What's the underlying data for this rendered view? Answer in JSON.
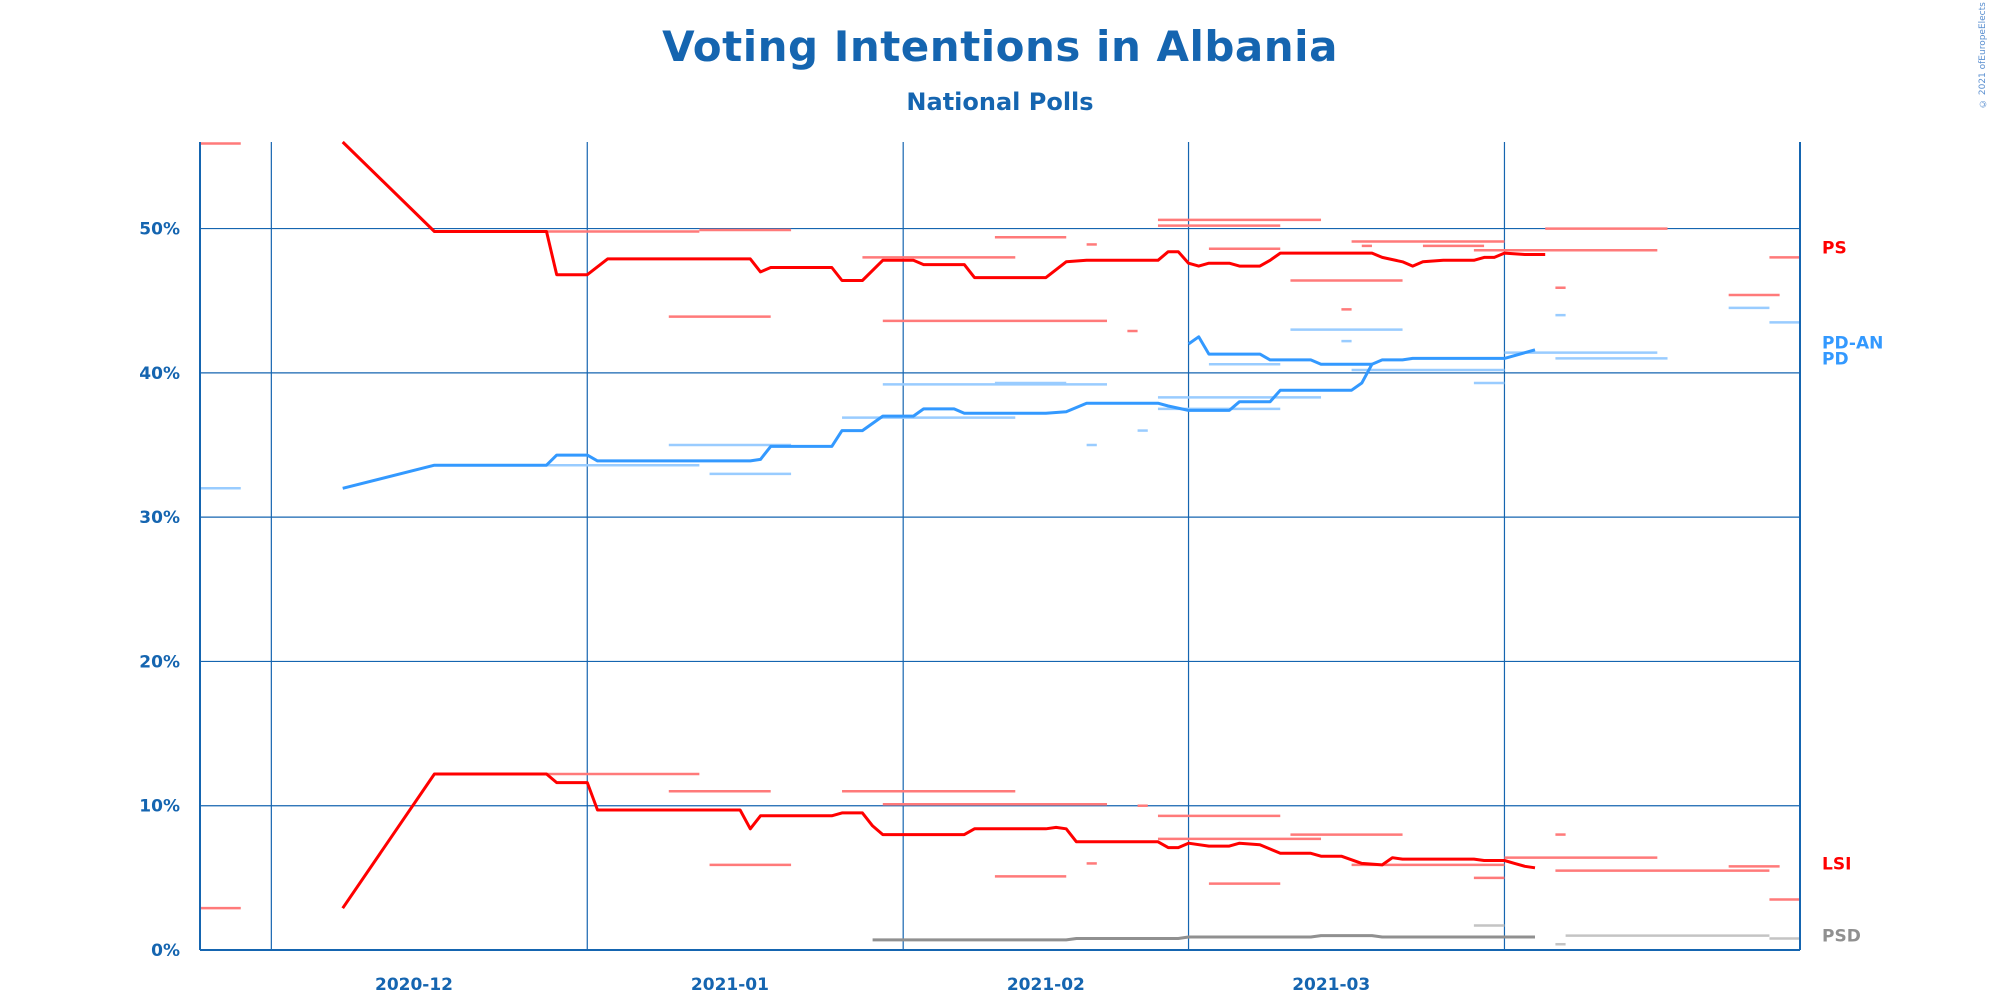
{
  "title": "Voting Intentions in Albania",
  "subtitle": "National Polls",
  "copyright": "© 2021 ofEuropeElects",
  "colors": {
    "axis": "#1565b0",
    "PS": "#ff0000",
    "PD": "#3399ff",
    "LSI": "#ff0000",
    "PSD": "#909090"
  },
  "chart_data": {
    "type": "line",
    "title": "Voting Intentions in Albania",
    "subtitle": "National Polls",
    "xlim": [
      "2020-11-24",
      "2021-04-30"
    ],
    "ylim": [
      0,
      56
    ],
    "y_ticks": [
      0,
      10,
      20,
      30,
      40,
      50
    ],
    "y_tick_labels": [
      "0%",
      "10%",
      "20%",
      "30%",
      "40%",
      "50%"
    ],
    "x_ticks": [
      "2020-12-01",
      "2021-01-01",
      "2021-02-01",
      "2021-03-01",
      "2021-04-01"
    ],
    "x_tick_labels": [
      "2020-12",
      "2021-01",
      "2021-02",
      "2021-03"
    ],
    "x_tick_label_positions": [
      "2020-12-15",
      "2021-01-15",
      "2021-02-15",
      "2021-03-15"
    ],
    "grid": true,
    "legend": "right end labels",
    "series": [
      {
        "name": "PS",
        "color": "#ff0000",
        "label_value": 48.7,
        "points": [
          [
            "2020-12-08",
            56.0
          ],
          [
            "2020-12-17",
            49.8
          ],
          [
            "2020-12-28",
            49.8
          ],
          [
            "2020-12-29",
            46.8
          ],
          [
            "2021-01-01",
            46.8
          ],
          [
            "2021-01-03",
            47.9
          ],
          [
            "2021-01-17",
            47.9
          ],
          [
            "2021-01-18",
            47.0
          ],
          [
            "2021-01-19",
            47.3
          ],
          [
            "2021-01-25",
            47.3
          ],
          [
            "2021-01-26",
            46.4
          ],
          [
            "2021-01-28",
            46.4
          ],
          [
            "2021-01-30",
            47.8
          ],
          [
            "2021-02-02",
            47.8
          ],
          [
            "2021-02-03",
            47.5
          ],
          [
            "2021-02-07",
            47.5
          ],
          [
            "2021-02-08",
            46.6
          ],
          [
            "2021-02-15",
            46.6
          ],
          [
            "2021-02-17",
            47.7
          ],
          [
            "2021-02-19",
            47.8
          ],
          [
            "2021-02-26",
            47.8
          ],
          [
            "2021-02-27",
            48.4
          ],
          [
            "2021-02-28",
            48.4
          ],
          [
            "2021-03-01",
            47.6
          ],
          [
            "2021-03-02",
            47.4
          ],
          [
            "2021-03-03",
            47.6
          ],
          [
            "2021-03-05",
            47.6
          ],
          [
            "2021-03-06",
            47.4
          ],
          [
            "2021-03-08",
            47.4
          ],
          [
            "2021-03-09",
            47.8
          ],
          [
            "2021-03-10",
            48.3
          ],
          [
            "2021-03-19",
            48.3
          ],
          [
            "2021-03-20",
            48.0
          ],
          [
            "2021-03-22",
            47.7
          ],
          [
            "2021-03-23",
            47.4
          ],
          [
            "2021-03-24",
            47.7
          ],
          [
            "2021-03-26",
            47.8
          ],
          [
            "2021-03-29",
            47.8
          ],
          [
            "2021-03-30",
            48.0
          ],
          [
            "2021-03-31",
            48.0
          ],
          [
            "2021-04-01",
            48.3
          ],
          [
            "2021-04-03",
            48.2
          ],
          [
            "2021-04-05",
            48.2
          ]
        ]
      },
      {
        "name": "PD-AN",
        "color": "#3399ff",
        "label_value": 42.1,
        "points": [
          [
            "2020-12-08",
            32.0
          ],
          [
            "2020-12-17",
            33.6
          ],
          [
            "2020-12-28",
            33.6
          ],
          [
            "2020-12-29",
            34.3
          ],
          [
            "2021-01-01",
            34.3
          ],
          [
            "2021-01-02",
            33.9
          ],
          [
            "2021-01-17",
            33.9
          ],
          [
            "2021-01-18",
            34.0
          ],
          [
            "2021-01-19",
            34.9
          ],
          [
            "2021-01-25",
            34.9
          ],
          [
            "2021-01-26",
            36.0
          ],
          [
            "2021-01-28",
            36.0
          ],
          [
            "2021-01-30",
            37.0
          ],
          [
            "2021-02-02",
            37.0
          ],
          [
            "2021-02-03",
            37.5
          ],
          [
            "2021-02-06",
            37.5
          ],
          [
            "2021-02-07",
            37.2
          ],
          [
            "2021-02-15",
            37.2
          ],
          [
            "2021-02-17",
            37.3
          ],
          [
            "2021-02-19",
            37.9
          ],
          [
            "2021-02-26",
            37.9
          ],
          [
            "2021-02-27",
            37.7
          ],
          [
            "2021-03-01",
            37.4
          ],
          [
            "2021-03-05",
            37.4
          ],
          [
            "2021-03-06",
            38.0
          ],
          [
            "2021-03-09",
            38.0
          ],
          [
            "2021-03-10",
            38.8
          ],
          [
            "2021-03-17",
            38.8
          ],
          [
            "2021-03-18",
            39.3
          ],
          [
            "2021-03-19",
            40.6
          ],
          [
            "2021-03-20",
            40.9
          ],
          [
            "2021-03-22",
            40.9
          ],
          [
            "2021-03-23",
            41.0
          ],
          [
            "2021-03-31",
            41.0
          ],
          [
            "2021-04-01",
            41.0
          ],
          [
            "2021-04-03",
            41.4
          ],
          [
            "2021-04-04",
            41.6
          ]
        ]
      },
      {
        "name": "PD",
        "color": "#3399ff",
        "label_value": 41.0,
        "points": [
          [
            "2021-03-01",
            42.0
          ],
          [
            "2021-03-02",
            42.5
          ],
          [
            "2021-03-03",
            41.3
          ],
          [
            "2021-03-08",
            41.3
          ],
          [
            "2021-03-09",
            40.9
          ],
          [
            "2021-03-13",
            40.9
          ],
          [
            "2021-03-14",
            40.6
          ],
          [
            "2021-03-19",
            40.6
          ]
        ]
      },
      {
        "name": "LSI",
        "color": "#ff0000",
        "label_value": 6.0,
        "points": [
          [
            "2020-12-08",
            2.9
          ],
          [
            "2020-12-17",
            12.2
          ],
          [
            "2020-12-28",
            12.2
          ],
          [
            "2020-12-29",
            11.6
          ],
          [
            "2021-01-01",
            11.6
          ],
          [
            "2021-01-02",
            9.7
          ],
          [
            "2021-01-16",
            9.7
          ],
          [
            "2021-01-17",
            8.4
          ],
          [
            "2021-01-18",
            9.3
          ],
          [
            "2021-01-25",
            9.3
          ],
          [
            "2021-01-26",
            9.5
          ],
          [
            "2021-01-28",
            9.5
          ],
          [
            "2021-01-29",
            8.6
          ],
          [
            "2021-01-30",
            8.0
          ],
          [
            "2021-02-07",
            8.0
          ],
          [
            "2021-02-08",
            8.4
          ],
          [
            "2021-02-15",
            8.4
          ],
          [
            "2021-02-16",
            8.5
          ],
          [
            "2021-02-17",
            8.4
          ],
          [
            "2021-02-18",
            7.5
          ],
          [
            "2021-02-26",
            7.5
          ],
          [
            "2021-02-27",
            7.1
          ],
          [
            "2021-02-28",
            7.1
          ],
          [
            "2021-03-01",
            7.4
          ],
          [
            "2021-03-03",
            7.2
          ],
          [
            "2021-03-05",
            7.2
          ],
          [
            "2021-03-06",
            7.4
          ],
          [
            "2021-03-08",
            7.3
          ],
          [
            "2021-03-09",
            7.0
          ],
          [
            "2021-03-10",
            6.7
          ],
          [
            "2021-03-13",
            6.7
          ],
          [
            "2021-03-14",
            6.5
          ],
          [
            "2021-03-16",
            6.5
          ],
          [
            "2021-03-18",
            6.0
          ],
          [
            "2021-03-20",
            5.9
          ],
          [
            "2021-03-21",
            6.4
          ],
          [
            "2021-03-22",
            6.3
          ],
          [
            "2021-03-29",
            6.3
          ],
          [
            "2021-03-30",
            6.2
          ],
          [
            "2021-04-01",
            6.2
          ],
          [
            "2021-04-02",
            6.0
          ],
          [
            "2021-04-03",
            5.8
          ],
          [
            "2021-04-04",
            5.7
          ]
        ]
      },
      {
        "name": "PSD",
        "color": "#909090",
        "label_value": 1.0,
        "points": [
          [
            "2021-01-29",
            0.7
          ],
          [
            "2021-02-17",
            0.7
          ],
          [
            "2021-02-18",
            0.8
          ],
          [
            "2021-02-28",
            0.8
          ],
          [
            "2021-03-01",
            0.9
          ],
          [
            "2021-03-13",
            0.9
          ],
          [
            "2021-03-14",
            1.0
          ],
          [
            "2021-03-19",
            1.0
          ],
          [
            "2021-03-20",
            0.9
          ],
          [
            "2021-04-04",
            0.9
          ]
        ]
      }
    ],
    "polls": [
      {
        "party": "PS",
        "start": "2020-11-24",
        "end": "2020-11-28",
        "value": 55.9
      },
      {
        "party": "PS",
        "start": "2020-12-17",
        "end": "2021-01-12",
        "value": 49.8
      },
      {
        "party": "PS",
        "start": "2021-01-12",
        "end": "2021-01-21",
        "value": 49.9
      },
      {
        "party": "PS",
        "start": "2021-01-09",
        "end": "2021-01-19",
        "value": 43.9
      },
      {
        "party": "PS",
        "start": "2021-01-28",
        "end": "2021-02-12",
        "value": 48.0
      },
      {
        "party": "PS",
        "start": "2021-02-10",
        "end": "2021-02-17",
        "value": 49.4
      },
      {
        "party": "PS",
        "start": "2021-02-19",
        "end": "2021-02-20",
        "value": 48.9
      },
      {
        "party": "PS",
        "start": "2021-01-30",
        "end": "2021-02-21",
        "value": 43.6
      },
      {
        "party": "PS",
        "start": "2021-02-23",
        "end": "2021-02-24",
        "value": 42.9
      },
      {
        "party": "PS",
        "start": "2021-02-26",
        "end": "2021-03-14",
        "value": 50.6
      },
      {
        "party": "PS",
        "start": "2021-02-26",
        "end": "2021-03-10",
        "value": 50.2
      },
      {
        "party": "PS",
        "start": "2021-03-03",
        "end": "2021-03-10",
        "value": 48.6
      },
      {
        "party": "PS",
        "start": "2021-03-11",
        "end": "2021-03-22",
        "value": 46.4
      },
      {
        "party": "PS",
        "start": "2021-03-16",
        "end": "2021-03-17",
        "value": 44.4
      },
      {
        "party": "PS",
        "start": "2021-03-17",
        "end": "2021-04-01",
        "value": 49.1
      },
      {
        "party": "PS",
        "start": "2021-03-18",
        "end": "2021-03-19",
        "value": 48.8
      },
      {
        "party": "PS",
        "start": "2021-03-24",
        "end": "2021-03-30",
        "value": 48.8
      },
      {
        "party": "PS",
        "start": "2021-03-29",
        "end": "2021-04-16",
        "value": 48.5
      },
      {
        "party": "PS",
        "start": "2021-04-05",
        "end": "2021-04-17",
        "value": 50.0
      },
      {
        "party": "PS",
        "start": "2021-04-06",
        "end": "2021-04-07",
        "value": 45.9
      },
      {
        "party": "PS",
        "start": "2021-04-23",
        "end": "2021-04-28",
        "value": 45.4
      },
      {
        "party": "PS",
        "start": "2021-04-27",
        "end": "2021-04-30",
        "value": 48.0
      },
      {
        "party": "PD",
        "start": "2020-11-24",
        "end": "2020-11-28",
        "value": 32.0
      },
      {
        "party": "PD",
        "start": "2020-12-28",
        "end": "2021-01-12",
        "value": 33.6
      },
      {
        "party": "PD",
        "start": "2021-01-09",
        "end": "2021-01-21",
        "value": 35.0
      },
      {
        "party": "PD",
        "start": "2021-01-13",
        "end": "2021-01-21",
        "value": 33.0
      },
      {
        "party": "PD",
        "start": "2021-01-26",
        "end": "2021-02-12",
        "value": 36.9
      },
      {
        "party": "PD",
        "start": "2021-01-30",
        "end": "2021-02-21",
        "value": 39.2
      },
      {
        "party": "PD",
        "start": "2021-02-10",
        "end": "2021-02-17",
        "value": 39.3
      },
      {
        "party": "PD",
        "start": "2021-02-19",
        "end": "2021-02-20",
        "value": 35.0
      },
      {
        "party": "PD",
        "start": "2021-02-24",
        "end": "2021-02-25",
        "value": 36.0
      },
      {
        "party": "PD",
        "start": "2021-02-26",
        "end": "2021-03-14",
        "value": 38.3
      },
      {
        "party": "PD",
        "start": "2021-02-26",
        "end": "2021-03-10",
        "value": 37.5
      },
      {
        "party": "PD",
        "start": "2021-03-03",
        "end": "2021-03-10",
        "value": 40.6
      },
      {
        "party": "PD",
        "start": "2021-03-11",
        "end": "2021-03-22",
        "value": 43.0
      },
      {
        "party": "PD",
        "start": "2021-03-16",
        "end": "2021-03-17",
        "value": 42.2
      },
      {
        "party": "PD",
        "start": "2021-03-17",
        "end": "2021-04-01",
        "value": 40.2
      },
      {
        "party": "PD",
        "start": "2021-03-29",
        "end": "2021-04-01",
        "value": 39.3
      },
      {
        "party": "PD",
        "start": "2021-04-01",
        "end": "2021-04-16",
        "value": 41.4
      },
      {
        "party": "PD",
        "start": "2021-04-06",
        "end": "2021-04-07",
        "value": 44.0
      },
      {
        "party": "PD",
        "start": "2021-04-06",
        "end": "2021-04-17",
        "value": 41.0
      },
      {
        "party": "PD",
        "start": "2021-04-23",
        "end": "2021-04-27",
        "value": 44.5
      },
      {
        "party": "PD",
        "start": "2021-04-27",
        "end": "2021-04-30",
        "value": 43.5
      },
      {
        "party": "LSI",
        "start": "2020-11-24",
        "end": "2020-11-28",
        "value": 2.9
      },
      {
        "party": "LSI",
        "start": "2020-12-28",
        "end": "2021-01-12",
        "value": 12.2
      },
      {
        "party": "LSI",
        "start": "2021-01-09",
        "end": "2021-01-19",
        "value": 11.0
      },
      {
        "party": "LSI",
        "start": "2021-01-13",
        "end": "2021-01-21",
        "value": 5.9
      },
      {
        "party": "LSI",
        "start": "2021-01-26",
        "end": "2021-02-12",
        "value": 11.0
      },
      {
        "party": "LSI",
        "start": "2021-01-30",
        "end": "2021-02-21",
        "value": 10.1
      },
      {
        "party": "LSI",
        "start": "2021-02-10",
        "end": "2021-02-17",
        "value": 5.1
      },
      {
        "party": "LSI",
        "start": "2021-02-19",
        "end": "2021-02-20",
        "value": 6.0
      },
      {
        "party": "LSI",
        "start": "2021-02-24",
        "end": "2021-02-25",
        "value": 10.0
      },
      {
        "party": "LSI",
        "start": "2021-02-26",
        "end": "2021-03-10",
        "value": 9.3
      },
      {
        "party": "LSI",
        "start": "2021-02-26",
        "end": "2021-03-14",
        "value": 7.7
      },
      {
        "party": "LSI",
        "start": "2021-03-03",
        "end": "2021-03-10",
        "value": 4.6
      },
      {
        "party": "LSI",
        "start": "2021-03-11",
        "end": "2021-03-22",
        "value": 8.0
      },
      {
        "party": "LSI",
        "start": "2021-03-17",
        "end": "2021-04-01",
        "value": 5.9
      },
      {
        "party": "LSI",
        "start": "2021-03-29",
        "end": "2021-04-01",
        "value": 5.0
      },
      {
        "party": "LSI",
        "start": "2021-04-01",
        "end": "2021-04-16",
        "value": 6.4
      },
      {
        "party": "LSI",
        "start": "2021-04-06",
        "end": "2021-04-07",
        "value": 8.0
      },
      {
        "party": "LSI",
        "start": "2021-04-06",
        "end": "2021-04-27",
        "value": 5.5
      },
      {
        "party": "LSI",
        "start": "2021-04-23",
        "end": "2021-04-28",
        "value": 5.8
      },
      {
        "party": "LSI",
        "start": "2021-04-27",
        "end": "2021-04-30",
        "value": 3.5
      },
      {
        "party": "PSD",
        "start": "2021-03-29",
        "end": "2021-04-01",
        "value": 1.7
      },
      {
        "party": "PSD",
        "start": "2021-04-06",
        "end": "2021-04-07",
        "value": 0.4
      },
      {
        "party": "PSD",
        "start": "2021-04-07",
        "end": "2021-04-27",
        "value": 1.0
      },
      {
        "party": "PSD",
        "start": "2021-04-27",
        "end": "2021-04-30",
        "value": 0.8
      }
    ],
    "end_labels": [
      {
        "name": "PS",
        "y": 48.7,
        "color": "#ff0000"
      },
      {
        "name": "PD-AN",
        "y": 42.1,
        "color": "#3399ff"
      },
      {
        "name": "PD",
        "y": 41.0,
        "color": "#3399ff"
      },
      {
        "name": "LSI",
        "y": 6.0,
        "color": "#ff0000"
      },
      {
        "name": "PSD",
        "y": 1.0,
        "color": "#909090"
      }
    ]
  }
}
